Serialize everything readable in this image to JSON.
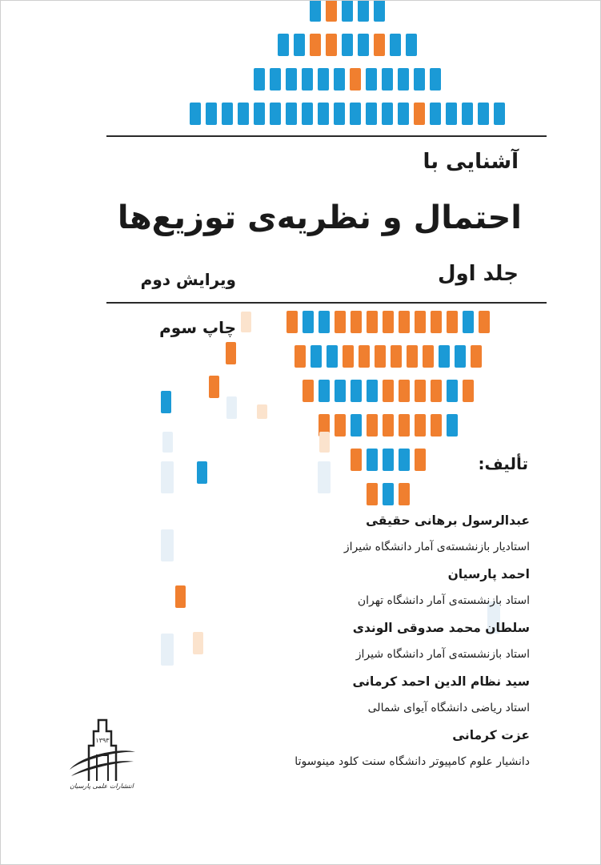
{
  "colors": {
    "blue": "#1b9ad6",
    "orange": "#f07f2f",
    "light_blue": "#e7f0f7",
    "light_orange": "#fbe3cd",
    "rule": "#2a2a2a"
  },
  "cover": {
    "subtitle": "آشنایی با",
    "title": "احتمال و نظریه‌ی توزیع‌ها",
    "volume": "جلد اول",
    "edition": "ویرایش دوم",
    "printing": "چاپ سوم",
    "authored_by": "تألیف:"
  },
  "authors": [
    {
      "name": "عبدالرسول برهانی حقیقی",
      "position": "استادیار بازنشسته‌ی آمار دانشگاه شیراز"
    },
    {
      "name": "احمد پارسیان",
      "position": "استاد بازنشسته‌ی آمار دانشگاه تهران"
    },
    {
      "name": "سلطان محمد صدوقی الوندی",
      "position": "استاد بازنشسته‌ی آمار دانشگاه شیراز"
    },
    {
      "name": "سید نظام الدین احمد کرمانی",
      "position": "استاد ریاضی دانشگاه آیوای شمالی"
    },
    {
      "name": "عزت کرمانی",
      "position": "دانشیار علوم کامپیوتر دانشگاه سنت کلود مینوسوتا"
    }
  ],
  "publisher": {
    "logo_year": "۱۳۹۳",
    "logo_text": "انتشارات علمی پارسیان"
  },
  "decoration": {
    "top_pyramid_rows": [
      "bobbb",
      "bboobbobb",
      "bbbbbbobbbbb",
      "bbbbbbbbbbbbbbobbbbb"
    ],
    "bottom_pyramid_rows": [
      "obboooooooobo",
      "obboooooobbo",
      "obbbboooobo",
      "oobooooob",
      "obbbo",
      "obo"
    ]
  }
}
